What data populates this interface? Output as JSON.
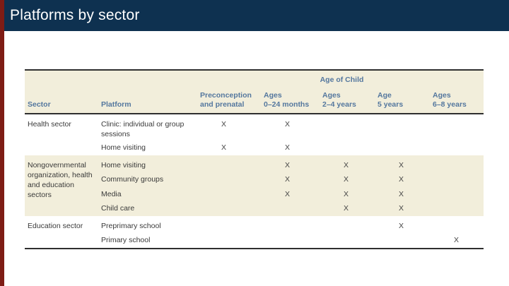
{
  "slide": {
    "title": "Platforms by sector"
  },
  "colors": {
    "title_bar": "#0e3150",
    "accent_strip": "#7e1c15",
    "table_band": "#f2eedb",
    "header_text": "#54779e",
    "body_text": "#3a3a3a"
  },
  "table": {
    "age_of_child_label": "Age of Child",
    "mark": "X",
    "columns": {
      "sector": "Sector",
      "platform": "Platform",
      "ages": [
        {
          "line1": "Preconception",
          "line2": "and prenatal"
        },
        {
          "line1": "Ages",
          "line2": "0–24 months"
        },
        {
          "line1": "Ages",
          "line2": "2–4 years"
        },
        {
          "line1": "Age",
          "line2": "5 years"
        },
        {
          "line1": "Ages",
          "line2": "6–8 years"
        }
      ]
    },
    "sections": [
      {
        "sector": "Health sector",
        "shaded": false,
        "rows": [
          {
            "platform": "Clinic: individual or group sessions",
            "marks": [
              true,
              true,
              false,
              false,
              false
            ]
          },
          {
            "platform": "Home visiting",
            "marks": [
              true,
              true,
              false,
              false,
              false
            ]
          }
        ]
      },
      {
        "sector": "Nongovernmental organization, health and education sectors",
        "shaded": true,
        "rows": [
          {
            "platform": "Home visiting",
            "marks": [
              false,
              true,
              true,
              true,
              false
            ]
          },
          {
            "platform": "Community groups",
            "marks": [
              false,
              true,
              true,
              true,
              false
            ]
          },
          {
            "platform": "Media",
            "marks": [
              false,
              true,
              true,
              true,
              false
            ]
          },
          {
            "platform": "Child care",
            "marks": [
              false,
              false,
              true,
              true,
              false
            ]
          }
        ]
      },
      {
        "sector": "Education sector",
        "shaded": false,
        "rows": [
          {
            "platform": "Preprimary school",
            "marks": [
              false,
              false,
              false,
              true,
              false
            ]
          },
          {
            "platform": "Primary school",
            "marks": [
              false,
              false,
              false,
              false,
              true
            ]
          }
        ]
      }
    ]
  }
}
